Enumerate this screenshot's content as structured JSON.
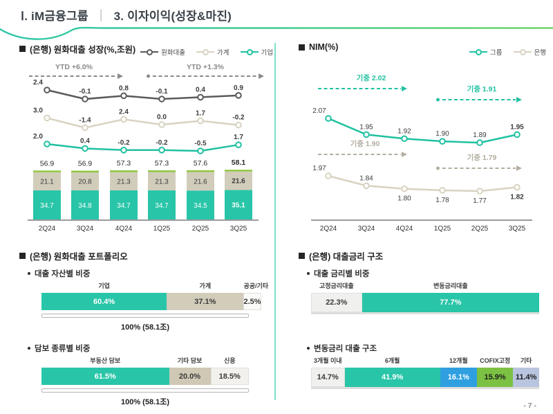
{
  "header": {
    "section_title": "Ⅰ. iM금융그룹",
    "divider": "|",
    "page_title": "3. 이자이익(성장&마진)"
  },
  "page_number": "- 7 -",
  "colors": {
    "teal": "#1fc1a1",
    "teal_bar": "#29c5a8",
    "beige": "#d8d2c0",
    "beige_bar": "#d2ccbb",
    "dark_line": "#595a5c",
    "green_cap": "#8fc73e",
    "blue": "#2f9fe0",
    "green": "#7cc142",
    "periwinkle": "#b9c5de",
    "light_gray": "#f0f0ee",
    "annotation_gray": "#8a8a8a",
    "annotation_warm_gray": "#b3ada0",
    "divider_teal": "#7de0cb"
  },
  "chart_data": [
    {
      "id": "loan_growth",
      "type": "line+bar",
      "title": "(은행) 원화대출 성장(%,조원)",
      "categories": [
        "2Q24",
        "3Q24",
        "4Q24",
        "1Q25",
        "2Q25",
        "3Q25"
      ],
      "annotations": [
        {
          "label": "YTD +6.0%",
          "color": "#8a8a8a",
          "start_dot": false
        },
        {
          "label": "YTD +1.3%",
          "color": "#8a8a8a",
          "start_dot": true
        }
      ],
      "line_series": [
        {
          "name": "원화대출",
          "color": "#595a5c",
          "values": [
            2.4,
            -0.1,
            0.8,
            -0.1,
            0.4,
            0.9
          ]
        },
        {
          "name": "가계",
          "color": "#d8d2c0",
          "values": [
            3.0,
            -1.4,
            2.4,
            0.0,
            1.7,
            -0.2
          ]
        },
        {
          "name": "기업",
          "color": "#1fc1a1",
          "values": [
            2.0,
            0.4,
            -0.2,
            -0.2,
            -0.5,
            1.7
          ]
        }
      ],
      "bar_series": [
        {
          "name": "기업",
          "color": "#29c5a8",
          "label_color": "#ffffff",
          "values": [
            34.7,
            34.8,
            34.7,
            34.7,
            34.5,
            35.1
          ]
        },
        {
          "name": "가계",
          "color": "#d2ccbb",
          "label_color": "#3a3a3a",
          "values": [
            21.1,
            20.8,
            21.3,
            21.3,
            21.6,
            21.6
          ]
        }
      ],
      "bar_cap_color": "#8fc73e",
      "totals": [
        56.9,
        56.9,
        57.3,
        57.3,
        57.6,
        58.1
      ],
      "legend_position": "top-right"
    },
    {
      "id": "nim",
      "type": "line",
      "title": "NIM(%)",
      "categories": [
        "2Q24",
        "3Q24",
        "4Q24",
        "1Q25",
        "2Q25",
        "3Q25"
      ],
      "annotations": [
        {
          "label": "기중  2.02",
          "color": "#1fc1a1",
          "start_dot": false
        },
        {
          "label": "기중  1.91",
          "color": "#1fc1a1",
          "start_dot": true
        },
        {
          "label": "기중  1.90",
          "color": "#b3ada0",
          "start_dot": false
        },
        {
          "label": "기중  1.79",
          "color": "#b3ada0",
          "start_dot": true
        }
      ],
      "series": [
        {
          "name": "그룹",
          "color": "#1fc1a1",
          "values": [
            2.07,
            1.95,
            1.92,
            1.9,
            1.89,
            1.95
          ]
        },
        {
          "name": "은행",
          "color": "#d8d2c0",
          "values": [
            1.97,
            1.84,
            1.8,
            1.78,
            1.77,
            1.82
          ]
        }
      ],
      "legend_position": "top-right"
    }
  ],
  "portfolio": {
    "title": "(은행) 원화대출 포트폴리오",
    "blocks": [
      {
        "subtitle": "대출 자산별 비중",
        "segments": [
          {
            "label": "기업",
            "value": "60.4%",
            "pct": 60.4,
            "bg": "#29c5a8",
            "fg": "#ffffff"
          },
          {
            "label": "가계",
            "value": "37.1%",
            "pct": 37.1,
            "bg": "#d2ccbb",
            "fg": "#3a3a3a"
          },
          {
            "label": "공공/기타",
            "value": "2.5%",
            "pct": 2.5,
            "bg": "#fafaf8",
            "fg": "#3a3a3a",
            "border": true
          }
        ],
        "total": "100% (58.1조)"
      },
      {
        "subtitle": "담보 종류별 비중",
        "segments": [
          {
            "label": "부동산 담보",
            "value": "61.5%",
            "pct": 61.5,
            "bg": "#29c5a8",
            "fg": "#ffffff"
          },
          {
            "label": "기타 담보",
            "value": "20.0%",
            "pct": 20.0,
            "bg": "#cfc8b4",
            "fg": "#3a3a3a"
          },
          {
            "label": "신용",
            "value": "18.5%",
            "pct": 18.5,
            "bg": "#f2f1ee",
            "fg": "#3a3a3a",
            "border": true
          }
        ],
        "total": "100% (58.1조)"
      }
    ]
  },
  "rates": {
    "title": "(은행) 대출금리 구조",
    "blocks": [
      {
        "subtitle": "대출 금리별 비중",
        "segments": [
          {
            "label": "고정금리대출",
            "value": "22.3%",
            "pct": 22.3,
            "bg": "#f0f0ee",
            "fg": "#3a3a3a",
            "border": true
          },
          {
            "label": "변동금리대출",
            "value": "77.7%",
            "pct": 77.7,
            "bg": "#29c5a8",
            "fg": "#ffffff"
          }
        ]
      },
      {
        "subtitle": "변동금리 대출 구조",
        "segments": [
          {
            "label": "3개월 이내",
            "value": "14.7%",
            "pct": 14.7,
            "bg": "#f0f0ee",
            "fg": "#3a3a3a",
            "border": true
          },
          {
            "label": "6개월",
            "value": "41.9%",
            "pct": 41.9,
            "bg": "#29c5a8",
            "fg": "#ffffff"
          },
          {
            "label": "12개월",
            "value": "16.1%",
            "pct": 16.1,
            "bg": "#2f9fe0",
            "fg": "#ffffff"
          },
          {
            "label": "COFIX고정",
            "value": "15.9%",
            "pct": 15.9,
            "bg": "#7cc142",
            "fg": "#1e1e1e"
          },
          {
            "label": "기타",
            "value": "11.4%",
            "pct": 11.4,
            "bg": "#b9c5de",
            "fg": "#1e1e1e"
          }
        ]
      }
    ]
  }
}
